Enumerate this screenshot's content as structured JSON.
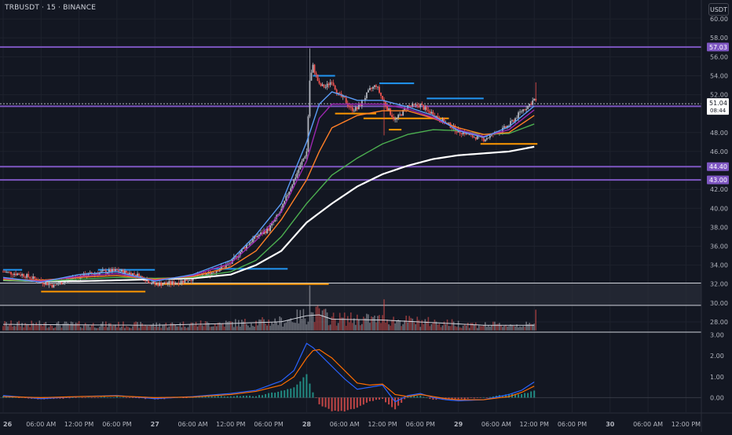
{
  "header": {
    "symbol_label": "TRBUSDT · 15 · BINANCE",
    "currency_button": "USDT"
  },
  "colors": {
    "background": "#131722",
    "grid": "#1e222d",
    "up_candle": "#b2b5be",
    "down_candle": "#ef5350",
    "level_line": "#7e57c2",
    "ma_white": "#ffffff",
    "ma_green": "#4caf50",
    "ma_orange": "#ff7f27",
    "ma_purple": "#9c27b0",
    "ma_blue": "#5b9cf6",
    "macd_line": "#2962ff",
    "signal_line": "#ff6d00",
    "hist_pos": "#26a69a",
    "hist_neg": "#ef5350"
  },
  "chart_data": {
    "type": "candlestick",
    "symbol": "TRBUSDT",
    "interval": "15",
    "exchange": "BINANCE",
    "price_axis": {
      "range": [
        27.0,
        62.0
      ],
      "ticks": [
        "60.00",
        "58.00",
        "56.00",
        "54.00",
        "52.00",
        "48.00",
        "46.00",
        "42.00",
        "40.00",
        "38.00",
        "36.00",
        "34.00",
        "32.00",
        "30.00",
        "28.00"
      ],
      "tick_values": [
        60,
        58,
        56,
        54,
        52,
        48,
        46,
        42,
        40,
        38,
        36,
        34,
        32,
        30,
        28
      ]
    },
    "current_price": {
      "value": "51.04",
      "countdown": "08:44",
      "num": 51.04
    },
    "level_labels": [
      {
        "label": "57.03",
        "value": 57.03
      },
      {
        "label": "50.77",
        "value": 50.77
      },
      {
        "label": "44.40",
        "value": 44.4
      },
      {
        "label": "43.00",
        "value": 43.0
      }
    ],
    "zone": {
      "low": 29.75,
      "high": 32.1
    },
    "time_axis": {
      "labels": [
        "26",
        "06:00 AM",
        "12:00 PM",
        "06:00 PM",
        "27",
        "06:00 AM",
        "12:00 PM",
        "06:00 PM",
        "28",
        "06:00 AM",
        "12:00 PM",
        "06:00 PM",
        "29",
        "06:00 AM",
        "12:00 PM",
        "06:00 PM",
        "30",
        "06:00 AM",
        "12:00 PM"
      ],
      "hour_offsets": [
        0,
        6,
        12,
        18,
        24,
        30,
        36,
        42,
        48,
        54,
        60,
        66,
        72,
        78,
        84,
        90,
        96,
        102,
        108
      ]
    },
    "close_anchors_hours": [
      [
        0,
        33.3
      ],
      [
        3,
        33.0
      ],
      [
        6,
        32.3
      ],
      [
        8,
        31.8
      ],
      [
        10,
        32.4
      ],
      [
        12,
        32.8
      ],
      [
        15,
        33.2
      ],
      [
        18,
        33.4
      ],
      [
        21,
        33.0
      ],
      [
        24,
        32.0
      ],
      [
        27,
        32.1
      ],
      [
        30,
        32.6
      ],
      [
        33,
        33.2
      ],
      [
        36,
        34.2
      ],
      [
        38,
        35.8
      ],
      [
        40,
        37.0
      ],
      [
        42,
        37.8
      ],
      [
        44,
        39.8
      ],
      [
        45,
        41.5
      ],
      [
        46,
        43.0
      ],
      [
        47,
        44.5
      ],
      [
        48,
        46.0
      ],
      [
        48.5,
        53.5
      ],
      [
        49,
        55.0
      ],
      [
        50,
        53.0
      ],
      [
        51,
        52.8
      ],
      [
        52,
        53.5
      ],
      [
        53,
        52.0
      ],
      [
        54,
        51.5
      ],
      [
        55,
        50.5
      ],
      [
        56,
        50.5
      ],
      [
        57,
        51.5
      ],
      [
        58,
        52.5
      ],
      [
        59,
        53.0
      ],
      [
        60,
        51.5
      ],
      [
        61,
        50.3
      ],
      [
        62,
        49.3
      ],
      [
        63,
        50.0
      ],
      [
        64,
        50.8
      ],
      [
        65,
        50.8
      ],
      [
        66,
        50.9
      ],
      [
        67,
        50.3
      ],
      [
        68,
        50.0
      ],
      [
        69,
        49.4
      ],
      [
        70,
        49.0
      ],
      [
        71,
        48.6
      ],
      [
        72,
        48.1
      ],
      [
        73,
        48.0
      ],
      [
        74,
        47.6
      ],
      [
        75,
        47.5
      ],
      [
        76,
        47.3
      ],
      [
        77,
        47.6
      ],
      [
        78,
        48.0
      ],
      [
        79,
        48.3
      ],
      [
        80,
        48.8
      ],
      [
        81,
        49.5
      ],
      [
        82,
        50.3
      ],
      [
        83,
        50.8
      ],
      [
        84,
        51.5
      ],
      [
        84.4,
        51.04
      ]
    ],
    "spikes": [
      {
        "hour": 48.5,
        "high": 56.9
      },
      {
        "hour": 84.2,
        "high": 53.3
      },
      {
        "hour": 60.2,
        "low": 47.7
      }
    ],
    "moving_averages": [
      {
        "color": "#ffffff",
        "points": [
          [
            0,
            32.4
          ],
          [
            6,
            32.3
          ],
          [
            12,
            32.3
          ],
          [
            18,
            32.4
          ],
          [
            24,
            32.5
          ],
          [
            30,
            32.6
          ],
          [
            36,
            33.0
          ],
          [
            40,
            34.0
          ],
          [
            44,
            35.5
          ],
          [
            48,
            38.5
          ],
          [
            52,
            40.5
          ],
          [
            56,
            42.3
          ],
          [
            60,
            43.6
          ],
          [
            64,
            44.5
          ],
          [
            68,
            45.2
          ],
          [
            72,
            45.6
          ],
          [
            76,
            45.8
          ],
          [
            80,
            46.0
          ],
          [
            84,
            46.5
          ]
        ]
      },
      {
        "color": "#4caf50",
        "points": [
          [
            0,
            32.4
          ],
          [
            6,
            32.3
          ],
          [
            12,
            32.5
          ],
          [
            18,
            32.7
          ],
          [
            24,
            32.6
          ],
          [
            30,
            32.7
          ],
          [
            36,
            33.3
          ],
          [
            40,
            34.5
          ],
          [
            44,
            37.0
          ],
          [
            48,
            40.5
          ],
          [
            52,
            43.5
          ],
          [
            56,
            45.3
          ],
          [
            60,
            46.8
          ],
          [
            64,
            47.8
          ],
          [
            68,
            48.3
          ],
          [
            72,
            48.2
          ],
          [
            76,
            47.8
          ],
          [
            80,
            47.9
          ],
          [
            84,
            48.9
          ]
        ]
      },
      {
        "color": "#ff7f27",
        "points": [
          [
            0,
            32.5
          ],
          [
            6,
            32.4
          ],
          [
            12,
            32.7
          ],
          [
            18,
            32.9
          ],
          [
            24,
            32.5
          ],
          [
            30,
            32.8
          ],
          [
            36,
            33.8
          ],
          [
            40,
            35.5
          ],
          [
            44,
            38.8
          ],
          [
            48,
            43.0
          ],
          [
            50,
            46.0
          ],
          [
            52,
            48.5
          ],
          [
            56,
            49.8
          ],
          [
            60,
            50.3
          ],
          [
            64,
            50.3
          ],
          [
            68,
            49.5
          ],
          [
            72,
            48.5
          ],
          [
            76,
            47.8
          ],
          [
            80,
            48.0
          ],
          [
            84,
            49.8
          ]
        ]
      },
      {
        "color": "#9c27b0",
        "points": [
          [
            0,
            32.6
          ],
          [
            6,
            32.3
          ],
          [
            12,
            32.8
          ],
          [
            18,
            33.1
          ],
          [
            24,
            32.4
          ],
          [
            30,
            32.9
          ],
          [
            36,
            34.2
          ],
          [
            40,
            36.6
          ],
          [
            44,
            39.6
          ],
          [
            48,
            45.0
          ],
          [
            50,
            49.5
          ],
          [
            52,
            51.0
          ],
          [
            56,
            51.0
          ],
          [
            60,
            51.0
          ],
          [
            64,
            50.5
          ],
          [
            68,
            49.6
          ],
          [
            72,
            48.3
          ],
          [
            76,
            47.6
          ],
          [
            80,
            48.3
          ],
          [
            84,
            50.4
          ]
        ]
      },
      {
        "color": "#5b9cf6",
        "points": [
          [
            0,
            32.7
          ],
          [
            6,
            32.2
          ],
          [
            12,
            33.0
          ],
          [
            18,
            33.3
          ],
          [
            24,
            32.3
          ],
          [
            30,
            33.0
          ],
          [
            36,
            34.5
          ],
          [
            40,
            37.2
          ],
          [
            44,
            40.5
          ],
          [
            48,
            47.0
          ],
          [
            50,
            51.0
          ],
          [
            52,
            52.3
          ],
          [
            56,
            51.4
          ],
          [
            60,
            51.4
          ],
          [
            64,
            50.7
          ],
          [
            68,
            49.8
          ],
          [
            72,
            48.2
          ],
          [
            76,
            47.5
          ],
          [
            80,
            48.6
          ],
          [
            84,
            50.8
          ]
        ]
      }
    ],
    "blue_marker_lines": [
      {
        "price": 33.5,
        "from_hour": 0,
        "to_hour": 3
      },
      {
        "price": 33.5,
        "from_hour": 15,
        "to_hour": 24
      },
      {
        "price": 33.6,
        "from_hour": 33,
        "to_hour": 45
      },
      {
        "price": 54.0,
        "from_hour": 49,
        "to_hour": 52.5
      },
      {
        "price": 53.2,
        "from_hour": 59.5,
        "to_hour": 65
      },
      {
        "price": 51.6,
        "from_hour": 67,
        "to_hour": 76
      }
    ],
    "orange_marker_lines": [
      {
        "price": 31.2,
        "from_hour": 6,
        "to_hour": 22.5
      },
      {
        "price": 32.0,
        "from_hour": 24,
        "to_hour": 51.5
      },
      {
        "price": 50.0,
        "from_hour": 52.5,
        "to_hour": 59
      },
      {
        "price": 49.5,
        "from_hour": 57,
        "to_hour": 70.5
      },
      {
        "price": 48.3,
        "from_hour": 61,
        "to_hour": 63
      },
      {
        "price": 46.8,
        "from_hour": 75.5,
        "to_hour": 84.5
      }
    ],
    "volume": {
      "baseline_ma_points": [
        [
          0,
          0.35
        ],
        [
          12,
          0.32
        ],
        [
          24,
          0.3
        ],
        [
          36,
          0.4
        ],
        [
          44,
          0.5
        ],
        [
          48,
          0.85
        ],
        [
          50,
          0.9
        ],
        [
          52,
          0.65
        ],
        [
          60,
          0.6
        ],
        [
          68,
          0.45
        ],
        [
          76,
          0.3
        ],
        [
          84,
          0.3
        ]
      ],
      "spikes": [
        {
          "hour": 48.5,
          "value": 2.6
        },
        {
          "hour": 60.2,
          "value": 1.8
        },
        {
          "hour": 84.2,
          "value": 1.2
        }
      ]
    },
    "macd": {
      "axis_range": [
        -0.7,
        3.1
      ],
      "ticks": [
        "3.00",
        "2.00",
        "1.00",
        "0.00"
      ],
      "tick_values": [
        3,
        2,
        1,
        0
      ],
      "macd_points": [
        [
          0,
          0.1
        ],
        [
          6,
          -0.05
        ],
        [
          12,
          0.05
        ],
        [
          18,
          0.1
        ],
        [
          24,
          -0.05
        ],
        [
          30,
          0.05
        ],
        [
          36,
          0.2
        ],
        [
          40,
          0.35
        ],
        [
          44,
          0.8
        ],
        [
          46,
          1.3
        ],
        [
          48,
          2.6
        ],
        [
          49,
          2.4
        ],
        [
          50,
          2.1
        ],
        [
          52,
          1.5
        ],
        [
          54,
          0.9
        ],
        [
          56,
          0.4
        ],
        [
          58,
          0.5
        ],
        [
          60,
          0.6
        ],
        [
          62,
          -0.2
        ],
        [
          64,
          0.1
        ],
        [
          66,
          0.2
        ],
        [
          68,
          0.0
        ],
        [
          70,
          -0.1
        ],
        [
          72,
          -0.15
        ],
        [
          76,
          -0.1
        ],
        [
          80,
          0.15
        ],
        [
          82,
          0.35
        ],
        [
          84,
          0.75
        ]
      ],
      "signal_points": [
        [
          0,
          0.05
        ],
        [
          6,
          0.0
        ],
        [
          12,
          0.05
        ],
        [
          18,
          0.08
        ],
        [
          24,
          0.0
        ],
        [
          30,
          0.03
        ],
        [
          36,
          0.15
        ],
        [
          40,
          0.3
        ],
        [
          44,
          0.6
        ],
        [
          46,
          1.0
        ],
        [
          48,
          1.9
        ],
        [
          49,
          2.25
        ],
        [
          50,
          2.3
        ],
        [
          52,
          1.9
        ],
        [
          54,
          1.3
        ],
        [
          56,
          0.7
        ],
        [
          58,
          0.6
        ],
        [
          60,
          0.65
        ],
        [
          62,
          0.15
        ],
        [
          64,
          0.05
        ],
        [
          66,
          0.15
        ],
        [
          68,
          0.05
        ],
        [
          70,
          -0.05
        ],
        [
          72,
          -0.1
        ],
        [
          76,
          -0.1
        ],
        [
          80,
          0.05
        ],
        [
          82,
          0.25
        ],
        [
          84,
          0.55
        ]
      ]
    }
  }
}
